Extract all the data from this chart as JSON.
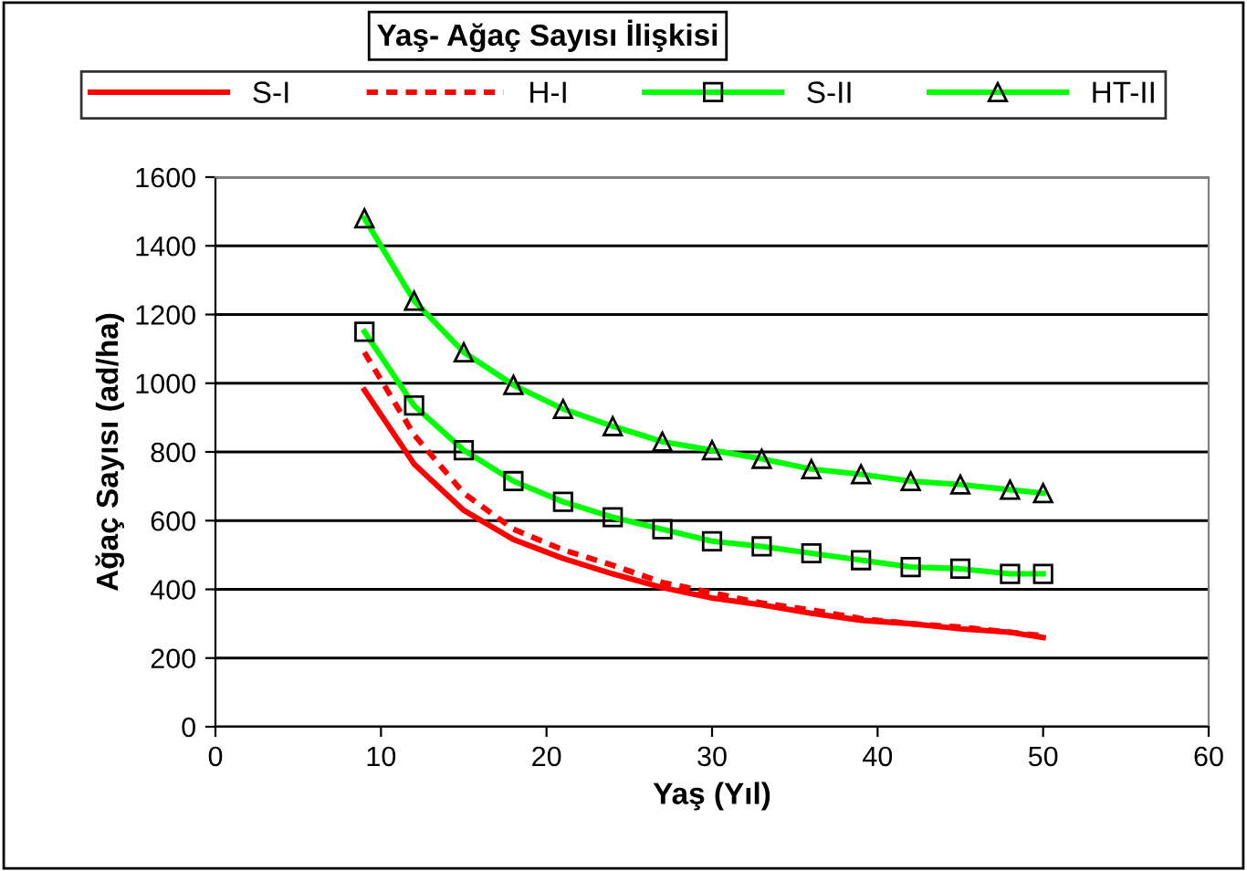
{
  "chart_data": {
    "type": "line",
    "title": "Yaş- Ağaç Sayısı İlişkisi",
    "xlabel": "Yaş (Yıl)",
    "ylabel": "Ağaç Sayısı (ad/ha)",
    "x": [
      9,
      12,
      15,
      18,
      21,
      24,
      27,
      30,
      33,
      36,
      39,
      42,
      45,
      48,
      50
    ],
    "series": [
      {
        "name": "S-I",
        "color": "#ff0000",
        "line_style": "solid",
        "marker": "none",
        "values": [
          980,
          765,
          630,
          545,
          490,
          445,
          405,
          375,
          355,
          330,
          310,
          300,
          285,
          275,
          260
        ]
      },
      {
        "name": "H-I",
        "color": "#ff0000",
        "line_style": "dashed",
        "marker": "none",
        "values": [
          1090,
          850,
          680,
          575,
          515,
          470,
          420,
          390,
          360,
          340,
          315,
          300,
          290,
          275,
          265
        ]
      },
      {
        "name": "S-II",
        "color": "#00ff00",
        "line_style": "solid",
        "marker": "square",
        "values": [
          1150,
          935,
          805,
          715,
          655,
          610,
          575,
          540,
          525,
          505,
          485,
          465,
          460,
          445,
          445
        ]
      },
      {
        "name": "HT-II",
        "color": "#00ff00",
        "line_style": "solid",
        "marker": "triangle",
        "values": [
          1480,
          1240,
          1090,
          995,
          925,
          875,
          830,
          805,
          780,
          750,
          735,
          715,
          705,
          690,
          680
        ]
      }
    ],
    "xlim": [
      0,
      60
    ],
    "xticks": [
      0,
      10,
      20,
      30,
      40,
      50,
      60
    ],
    "ylim": [
      0,
      1600
    ],
    "yticks": [
      0,
      200,
      400,
      600,
      800,
      1000,
      1200,
      1400,
      1600
    ],
    "grid": "y",
    "legend": "top"
  }
}
